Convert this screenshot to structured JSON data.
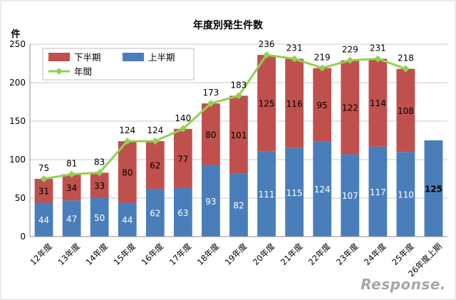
{
  "chart_data": {
    "type": "bar",
    "title": "年度別発生件数",
    "ylabel": "件",
    "ylim": [
      0,
      250
    ],
    "yticks": [
      0,
      50,
      100,
      150,
      200,
      250
    ],
    "grid": true,
    "legend_position": "top-left",
    "categories": [
      "12年度",
      "13年度",
      "14年度",
      "15年度",
      "16年度",
      "17年度",
      "18年度",
      "19年度",
      "20年度",
      "21年度",
      "22年度",
      "23年度",
      "24年度",
      "25年度",
      "26年度上期"
    ],
    "series": [
      {
        "name": "上半期",
        "kind": "bar",
        "color": "#4a7ebb",
        "values": [
          44,
          47,
          50,
          44,
          62,
          63,
          93,
          82,
          111,
          115,
          124,
          107,
          117,
          110,
          125
        ]
      },
      {
        "name": "下半期",
        "kind": "bar",
        "color": "#c0504d",
        "values": [
          31,
          34,
          33,
          80,
          62,
          77,
          80,
          101,
          125,
          116,
          95,
          122,
          114,
          108,
          null
        ]
      },
      {
        "name": "年間",
        "kind": "line",
        "color": "#92d050",
        "values": [
          75,
          81,
          83,
          124,
          124,
          140,
          173,
          183,
          236,
          231,
          219,
          229,
          231,
          218,
          null
        ]
      }
    ]
  },
  "watermark": "Response."
}
